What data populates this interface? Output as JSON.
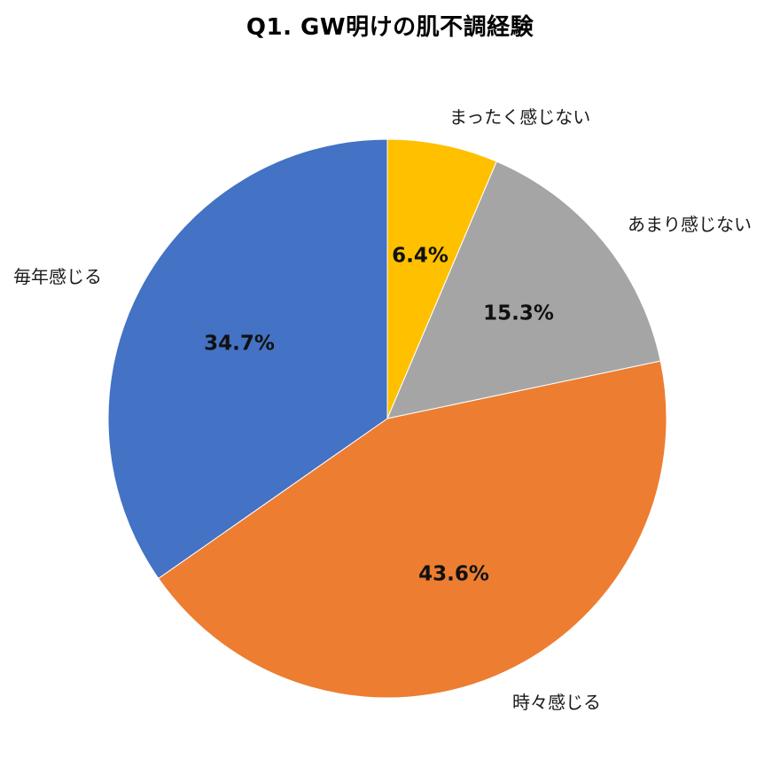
{
  "chart_data": {
    "type": "pie",
    "title": "Q1. GW明けの肌不調経験",
    "start_angle_deg": 0,
    "direction": "clockwise",
    "slices": [
      {
        "label": "まったく感じない",
        "value": 6.4,
        "display": "6.4%",
        "color": "#FFC000"
      },
      {
        "label": "あまり感じない",
        "value": 15.3,
        "display": "15.3%",
        "color": "#A5A5A5"
      },
      {
        "label": "時々感じる",
        "value": 43.6,
        "display": "43.6%",
        "color": "#ED7D31"
      },
      {
        "label": "毎年感じる",
        "value": 34.7,
        "display": "34.7%",
        "color": "#4472C4"
      }
    ],
    "legend": "none (category labels outside slices)",
    "data_labels": "percent, inside slices"
  },
  "title": "Q1. GW明けの肌不調経験",
  "labels": {
    "cat0": "まったく感じない",
    "cat1": "あまり感じない",
    "cat2": "時々感じる",
    "cat3": "毎年感じる",
    "val0": "6.4%",
    "val1": "15.3%",
    "val2": "43.6%",
    "val3": "34.7%"
  }
}
